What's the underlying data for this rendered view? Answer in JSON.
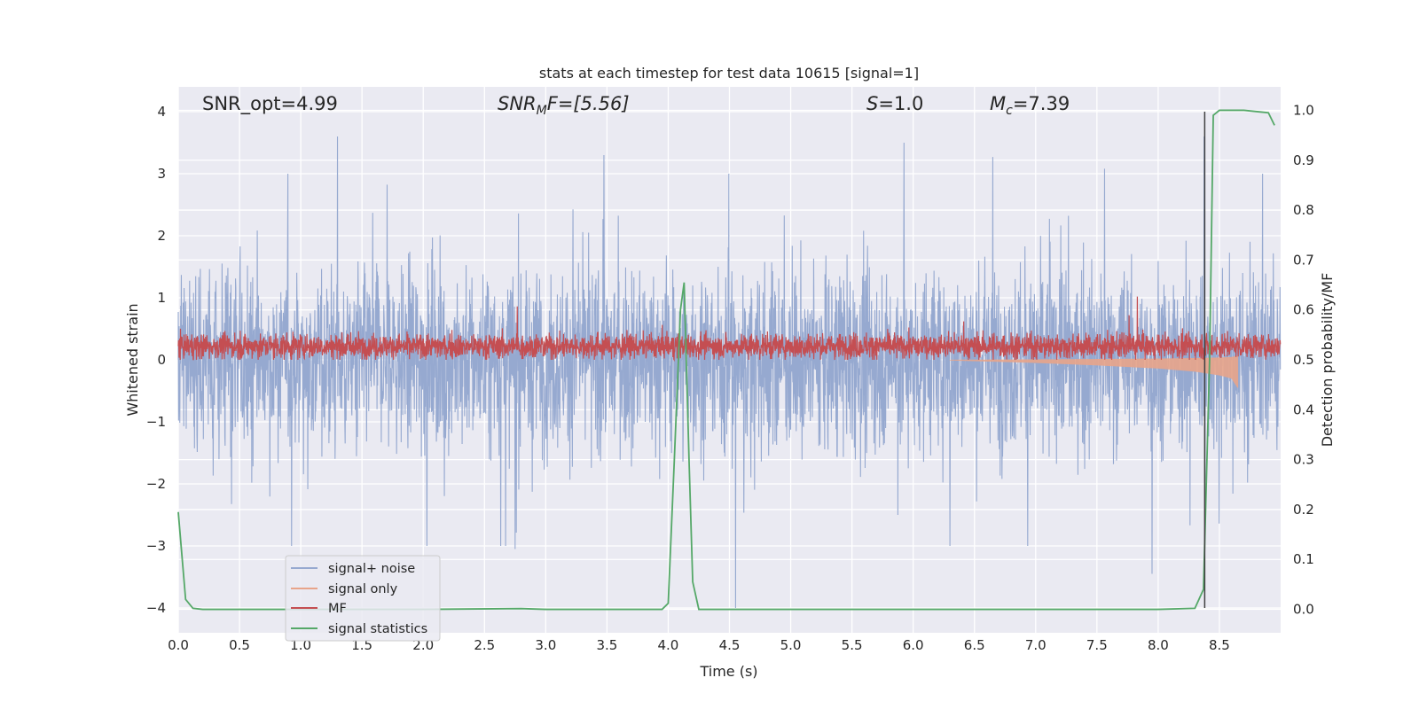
{
  "chart_data": {
    "type": "line",
    "title": "stats at each timestep for test data 10615 [signal=1]",
    "xlabel": "Time (s)",
    "ylabel": "Whitened strain",
    "ylabel_right": "Detection probability/MF",
    "xlim": [
      0.0,
      9.0
    ],
    "ylim": [
      -4.4,
      4.4
    ],
    "ylim_right": [
      -0.047,
      1.047
    ],
    "x_ticks": [
      "0.0",
      "0.5",
      "1.0",
      "1.5",
      "2.0",
      "2.5",
      "3.0",
      "3.5",
      "4.0",
      "4.5",
      "5.0",
      "5.5",
      "6.0",
      "6.5",
      "7.0",
      "7.5",
      "8.0",
      "8.5"
    ],
    "x_tick_values": [
      0.0,
      0.5,
      1.0,
      1.5,
      2.0,
      2.5,
      3.0,
      3.5,
      4.0,
      4.5,
      5.0,
      5.5,
      6.0,
      6.5,
      7.0,
      7.5,
      8.0,
      8.5
    ],
    "y_ticks": [
      "−4",
      "−3",
      "−2",
      "−1",
      "0",
      "1",
      "2",
      "3",
      "4"
    ],
    "y_tick_values": [
      -4,
      -3,
      -2,
      -1,
      0,
      1,
      2,
      3,
      4
    ],
    "y_right_ticks": [
      "0.0",
      "0.1",
      "0.2",
      "0.3",
      "0.4",
      "0.5",
      "0.6",
      "0.7",
      "0.8",
      "0.9",
      "1.0"
    ],
    "y_right_tick_values": [
      0.0,
      0.1,
      0.2,
      0.3,
      0.4,
      0.5,
      0.6,
      0.7,
      0.8,
      0.9,
      1.0
    ],
    "grid": true,
    "annotations": {
      "snr_opt": "SNR_opt=4.99",
      "snr_mf_main": "SNR",
      "snr_mf_sub": "M",
      "snr_mf_tail": "F=[5.56]",
      "s_main": "S",
      "s_tail": "=1.0",
      "mc_main": "M",
      "mc_sub": "c",
      "mc_tail": "=7.39"
    },
    "marker_time": 8.38,
    "series": [
      {
        "name": "signal+ noise",
        "color": "#96a9d0",
        "summary": "whitened strain noise, amplitude ~±1.6 dense, spikes to about ±3.6",
        "y_range": [
          -4.0,
          4.0
        ]
      },
      {
        "name": "signal only",
        "color": "#e8a48a",
        "summary": "chirp starting near 6.3 s growing in amplitude until 8.65 s",
        "x": [
          6.3,
          7.0,
          7.5,
          8.0,
          8.3,
          8.5,
          8.6,
          8.65
        ],
        "amplitude": [
          0.01,
          0.05,
          0.09,
          0.14,
          0.19,
          0.25,
          0.3,
          0.45
        ]
      },
      {
        "name": "MF",
        "color": "#c44e52",
        "summary": "matched filter output fluctuating between ~0.0 and ~0.6 on strain axis",
        "y_range": [
          0.0,
          1.05
        ]
      },
      {
        "name": "signal statistics",
        "color": "#55a868",
        "x": [
          0.0,
          0.06,
          0.12,
          0.2,
          0.5,
          1.0,
          2.0,
          2.8,
          3.0,
          3.5,
          3.8,
          3.95,
          4.0,
          4.05,
          4.1,
          4.13,
          4.17,
          4.2,
          4.25,
          4.3,
          4.5,
          5.0,
          6.0,
          7.0,
          8.0,
          8.3,
          8.37,
          8.42,
          8.45,
          8.5,
          8.7,
          8.9,
          8.95
        ],
        "y": [
          0.195,
          0.02,
          0.002,
          0.0,
          0.0,
          0.0,
          0.0,
          0.0015,
          0.0,
          0.0,
          0.0,
          0.0,
          0.012,
          0.3,
          0.6,
          0.655,
          0.3,
          0.055,
          0.0,
          0.0,
          0.0,
          0.0,
          0.0,
          0.0,
          0.0,
          0.002,
          0.04,
          0.5,
          0.99,
          1.0,
          1.0,
          0.995,
          0.97
        ]
      }
    ],
    "legend": {
      "placement": "lower-left",
      "entries": [
        "signal+ noise",
        "signal only",
        "MF",
        "signal statistics"
      ]
    }
  }
}
